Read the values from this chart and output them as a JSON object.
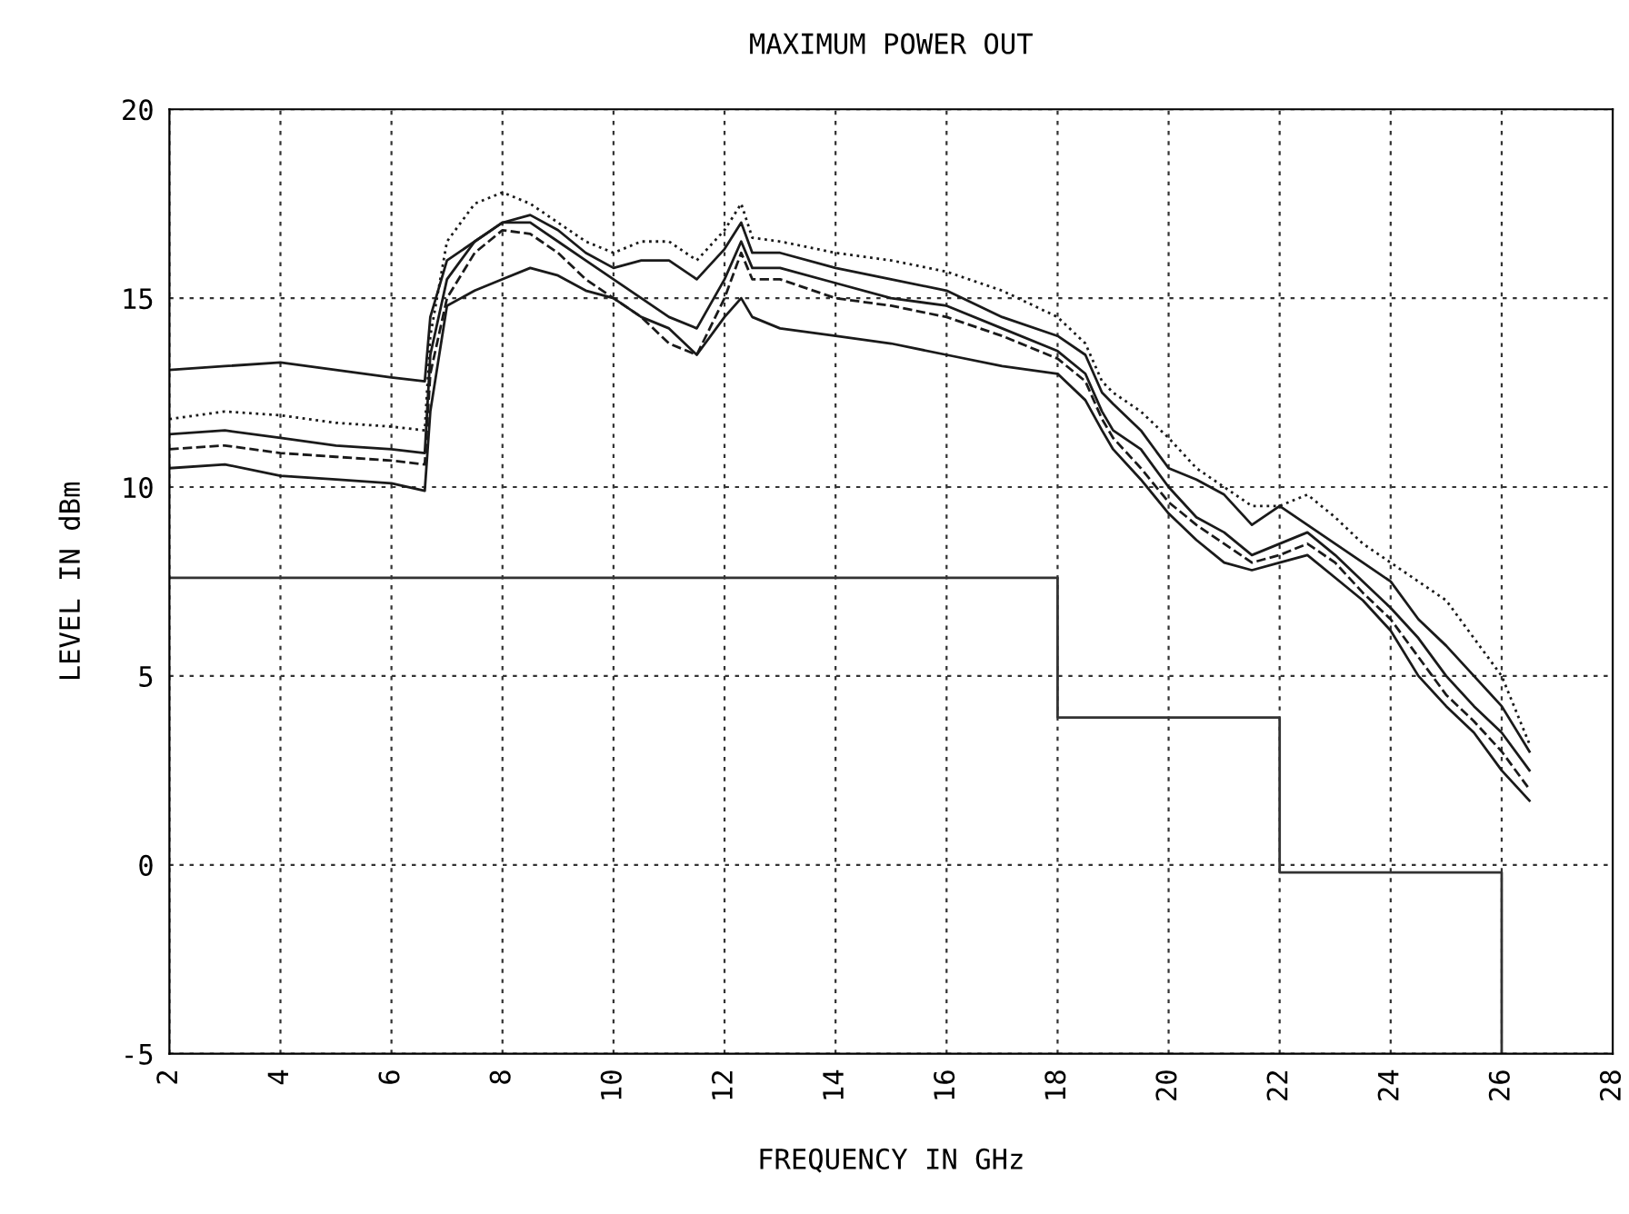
{
  "chart_data": {
    "type": "line",
    "title": "MAXIMUM POWER OUT",
    "xlabel": "FREQUENCY IN GHz",
    "ylabel": "LEVEL IN dBm",
    "xlim": [
      2,
      28
    ],
    "xticks": [
      2,
      4,
      6,
      8,
      10,
      12,
      14,
      16,
      18,
      20,
      22,
      24,
      26,
      28
    ],
    "ylim": [
      -5,
      20
    ],
    "yticks": [
      -5,
      0,
      5,
      10,
      15,
      20
    ],
    "grid": true,
    "marker": "none",
    "x": [
      2,
      3,
      4,
      5,
      6,
      6.6,
      6.7,
      7,
      7.5,
      8,
      8.5,
      9,
      9.5,
      10,
      10.5,
      11,
      11.5,
      12,
      12.3,
      12.5,
      13,
      14,
      15,
      16,
      17,
      18,
      18.5,
      18.8,
      19,
      19.5,
      20,
      20.5,
      21,
      21.5,
      22,
      22.5,
      23,
      23.5,
      24,
      24.5,
      25,
      25.5,
      26,
      26.5
    ],
    "series": [
      {
        "color": "#1a1a1a",
        "line_style": "solid",
        "values": [
          13.1,
          13.2,
          13.3,
          13.1,
          12.9,
          12.8,
          14.5,
          16.0,
          16.5,
          17.0,
          17.2,
          16.8,
          16.2,
          15.8,
          16.0,
          16.0,
          15.5,
          16.3,
          17.0,
          16.2,
          16.2,
          15.8,
          15.5,
          15.2,
          14.5,
          14.0,
          13.5,
          12.5,
          12.2,
          11.5,
          10.5,
          10.2,
          9.8,
          9.0,
          9.5,
          9.0,
          8.5,
          8.0,
          7.5,
          6.5,
          5.8,
          5.0,
          4.2,
          3.0
        ]
      },
      {
        "color": "#1a1a1a",
        "line_style": "dotted",
        "values": [
          11.8,
          12.0,
          11.9,
          11.7,
          11.6,
          11.5,
          14.0,
          16.5,
          17.5,
          17.8,
          17.5,
          17.0,
          16.5,
          16.2,
          16.5,
          16.5,
          16.0,
          16.8,
          17.5,
          16.6,
          16.5,
          16.2,
          16.0,
          15.7,
          15.2,
          14.5,
          13.8,
          12.8,
          12.5,
          12.0,
          11.3,
          10.5,
          10.0,
          9.5,
          9.5,
          9.8,
          9.2,
          8.5,
          8.0,
          7.5,
          7.0,
          6.0,
          5.0,
          3.2
        ]
      },
      {
        "color": "#1a1a1a",
        "line_style": "solid",
        "values": [
          11.4,
          11.5,
          11.3,
          11.1,
          11.0,
          10.9,
          13.5,
          15.5,
          16.5,
          17.0,
          17.0,
          16.5,
          16.0,
          15.5,
          15.0,
          14.5,
          14.2,
          15.5,
          16.5,
          15.8,
          15.8,
          15.4,
          15.0,
          14.8,
          14.2,
          13.6,
          13.0,
          12.0,
          11.5,
          11.0,
          10.0,
          9.2,
          8.8,
          8.2,
          8.5,
          8.8,
          8.2,
          7.5,
          6.8,
          6.0,
          5.0,
          4.2,
          3.5,
          2.5
        ]
      },
      {
        "color": "#1a1a1a",
        "line_style": "dashed",
        "values": [
          11.0,
          11.1,
          10.9,
          10.8,
          10.7,
          10.6,
          13.0,
          15.0,
          16.2,
          16.8,
          16.7,
          16.2,
          15.5,
          15.0,
          14.5,
          13.8,
          13.5,
          15.0,
          16.2,
          15.5,
          15.5,
          15.0,
          14.8,
          14.5,
          14.0,
          13.4,
          12.8,
          11.8,
          11.3,
          10.5,
          9.6,
          9.0,
          8.5,
          8.0,
          8.2,
          8.5,
          8.0,
          7.2,
          6.5,
          5.5,
          4.5,
          3.8,
          3.0,
          2.0
        ]
      },
      {
        "color": "#1a1a1a",
        "line_style": "solid",
        "values": [
          10.5,
          10.6,
          10.3,
          10.2,
          10.1,
          9.9,
          12.0,
          14.8,
          15.2,
          15.5,
          15.8,
          15.6,
          15.2,
          15.0,
          14.5,
          14.2,
          13.5,
          14.5,
          15.0,
          14.5,
          14.2,
          14.0,
          13.8,
          13.5,
          13.2,
          13.0,
          12.3,
          11.5,
          11.0,
          10.2,
          9.3,
          8.6,
          8.0,
          7.8,
          8.0,
          8.2,
          7.6,
          7.0,
          6.2,
          5.0,
          4.2,
          3.5,
          2.5,
          1.7
        ]
      },
      {
        "color": "#333333",
        "line_style": "solid",
        "x": [
          2,
          18,
          18,
          22,
          22,
          26,
          26
        ],
        "values": [
          7.6,
          7.6,
          3.9,
          3.9,
          -0.2,
          -0.2,
          -5
        ]
      }
    ]
  }
}
